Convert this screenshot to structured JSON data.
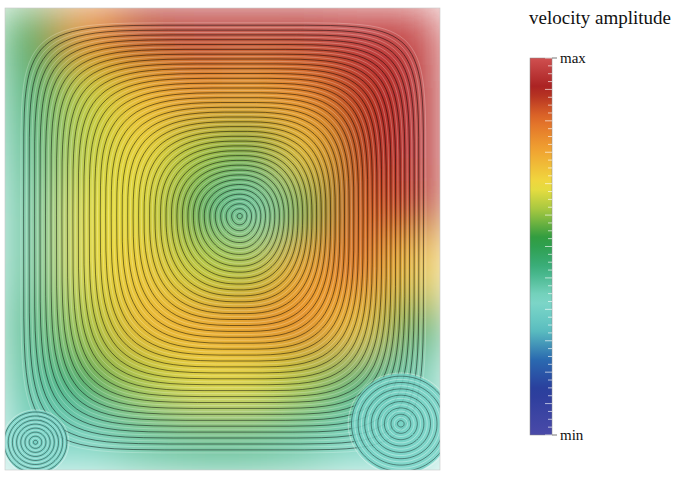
{
  "chart_data": {
    "type": "streamplot",
    "colorbar_label": "velocity amplitude",
    "xlim": [
      0,
      1
    ],
    "ylim": [
      0,
      1
    ],
    "tick_labels": false,
    "cells": [
      [
        0.5,
        0.8,
        0.9,
        0.95,
        0.95,
        0.95,
        0.97,
        0.97
      ],
      [
        0.45,
        0.62,
        0.72,
        0.78,
        0.75,
        0.8,
        0.9,
        0.95
      ],
      [
        0.42,
        0.62,
        0.68,
        0.6,
        0.55,
        0.7,
        0.9,
        0.95
      ],
      [
        0.4,
        0.65,
        0.65,
        0.5,
        0.38,
        0.55,
        0.85,
        0.9
      ],
      [
        0.4,
        0.65,
        0.7,
        0.62,
        0.6,
        0.75,
        0.85,
        0.7
      ],
      [
        0.42,
        0.6,
        0.72,
        0.75,
        0.78,
        0.8,
        0.7,
        0.5
      ],
      [
        0.4,
        0.48,
        0.6,
        0.65,
        0.65,
        0.6,
        0.45,
        0.38
      ],
      [
        0.35,
        0.36,
        0.4,
        0.42,
        0.42,
        0.4,
        0.36,
        0.35
      ]
    ],
    "colorbar_range": [
      0,
      1
    ],
    "colorbar_ticks": [
      {
        "value": 0,
        "label": "min"
      },
      {
        "value": 1,
        "label": "max"
      }
    ],
    "vortices": [
      {
        "x": 0.54,
        "y": 0.55,
        "radius": 1
      },
      {
        "x": 0.91,
        "y": 0.1,
        "radius": 0.11
      },
      {
        "x": 0.07,
        "y": 0.06,
        "radius": 0.07
      }
    ]
  }
}
